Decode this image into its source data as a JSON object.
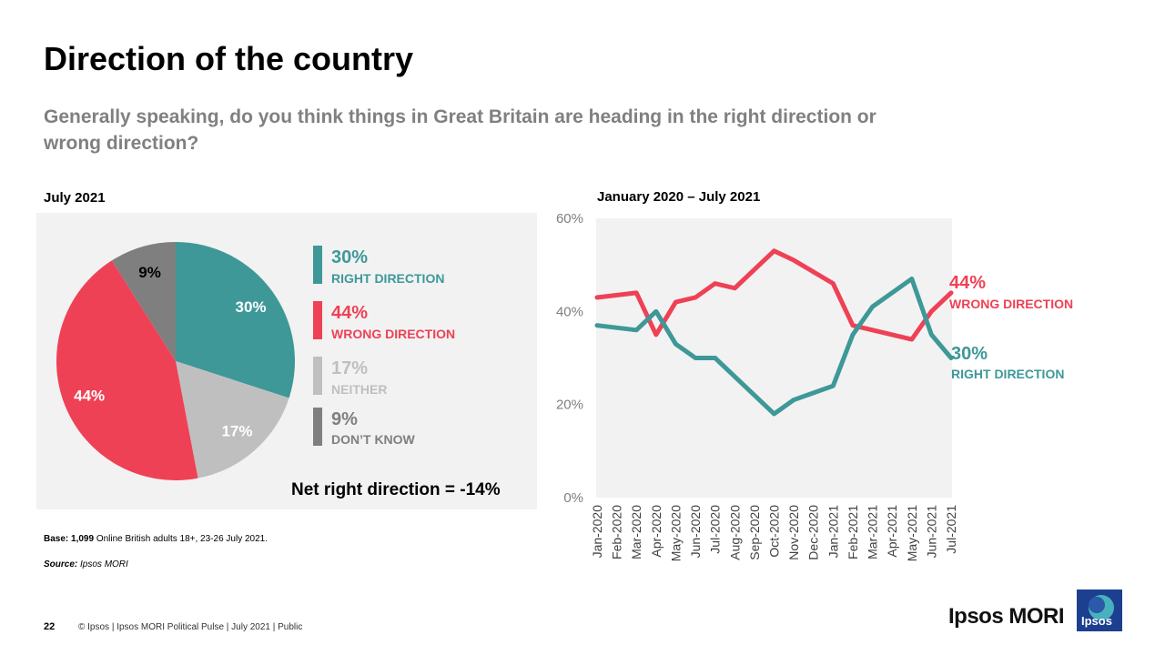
{
  "page": {
    "title": "Direction of the country",
    "subtitle": "Generally speaking, do you think things in Great Britain are heading in the right direction or wrong direction?",
    "pie_label": "July 2021",
    "line_label": "January 2020 – July 2021",
    "net_text": "Net right direction = -14%",
    "base_bold": "Base: 1,099",
    "base_text": " Online British adults 18+, 23-26 July 2021.",
    "source_bold": "Source:",
    "source_text": " Ipsos MORI",
    "page_number": "22",
    "footer_text": "© Ipsos | Ipsos MORI  Political Pulse | July 2021 | Public",
    "brand": "Ipsos MORI",
    "logo_text": "Ipsos"
  },
  "colors": {
    "right": "#3f9898",
    "wrong": "#ef4155",
    "neither": "#bfbfbf",
    "dont_know": "#7f7f7f"
  },
  "legend": [
    {
      "pct": "30%",
      "name": "RIGHT DIRECTION",
      "color": "#3f9898"
    },
    {
      "pct": "44%",
      "name": "WRONG DIRECTION",
      "color": "#ef4155"
    },
    {
      "pct": "17%",
      "name": "NEITHER",
      "color": "#bfbfbf"
    },
    {
      "pct": "9%",
      "name": "DON’T KNOW",
      "color": "#7f7f7f"
    }
  ],
  "line_end_labels": {
    "wrong_pct": "44%",
    "wrong_name": "WRONG DIRECTION",
    "right_pct": "30%",
    "right_name": "RIGHT DIRECTION"
  },
  "chart_data": [
    {
      "type": "pie",
      "title": "July 2021",
      "categories": [
        "Right direction",
        "Neither",
        "Wrong direction",
        "Don't know"
      ],
      "values": [
        30,
        17,
        44,
        9
      ],
      "labels": [
        "30%",
        "17%",
        "44%",
        "9%"
      ],
      "colors": [
        "#3f9898",
        "#bfbfbf",
        "#ef4155",
        "#7f7f7f"
      ]
    },
    {
      "type": "line",
      "title": "January 2020 – July 2021",
      "x": [
        "Jan-2020",
        "Feb-2020",
        "Mar-2020",
        "Apr-2020",
        "May-2020",
        "Jun-2020",
        "Jul-2020",
        "Aug-2020",
        "Sep-2020",
        "Oct-2020",
        "Nov-2020",
        "Dec-2020",
        "Jan-2021",
        "Feb-2021",
        "Mar-2021",
        "Apr-2021",
        "May-2021",
        "Jun-2021",
        "Jul-2021"
      ],
      "series": [
        {
          "name": "Wrong direction",
          "color": "#ef4155",
          "values": [
            43,
            null,
            44,
            35,
            42,
            43,
            46,
            45,
            null,
            53,
            51,
            null,
            46,
            37,
            36,
            null,
            34,
            40,
            44
          ]
        },
        {
          "name": "Right direction",
          "color": "#3f9898",
          "values": [
            37,
            null,
            36,
            40,
            33,
            30,
            30,
            null,
            null,
            18,
            21,
            null,
            24,
            35,
            41,
            null,
            47,
            35,
            30
          ]
        }
      ],
      "ylim": [
        0,
        60
      ],
      "yticks": [
        0,
        20,
        40,
        60
      ],
      "ytick_labels": [
        "0%",
        "20%",
        "40%",
        "60%"
      ],
      "grid": false
    }
  ]
}
